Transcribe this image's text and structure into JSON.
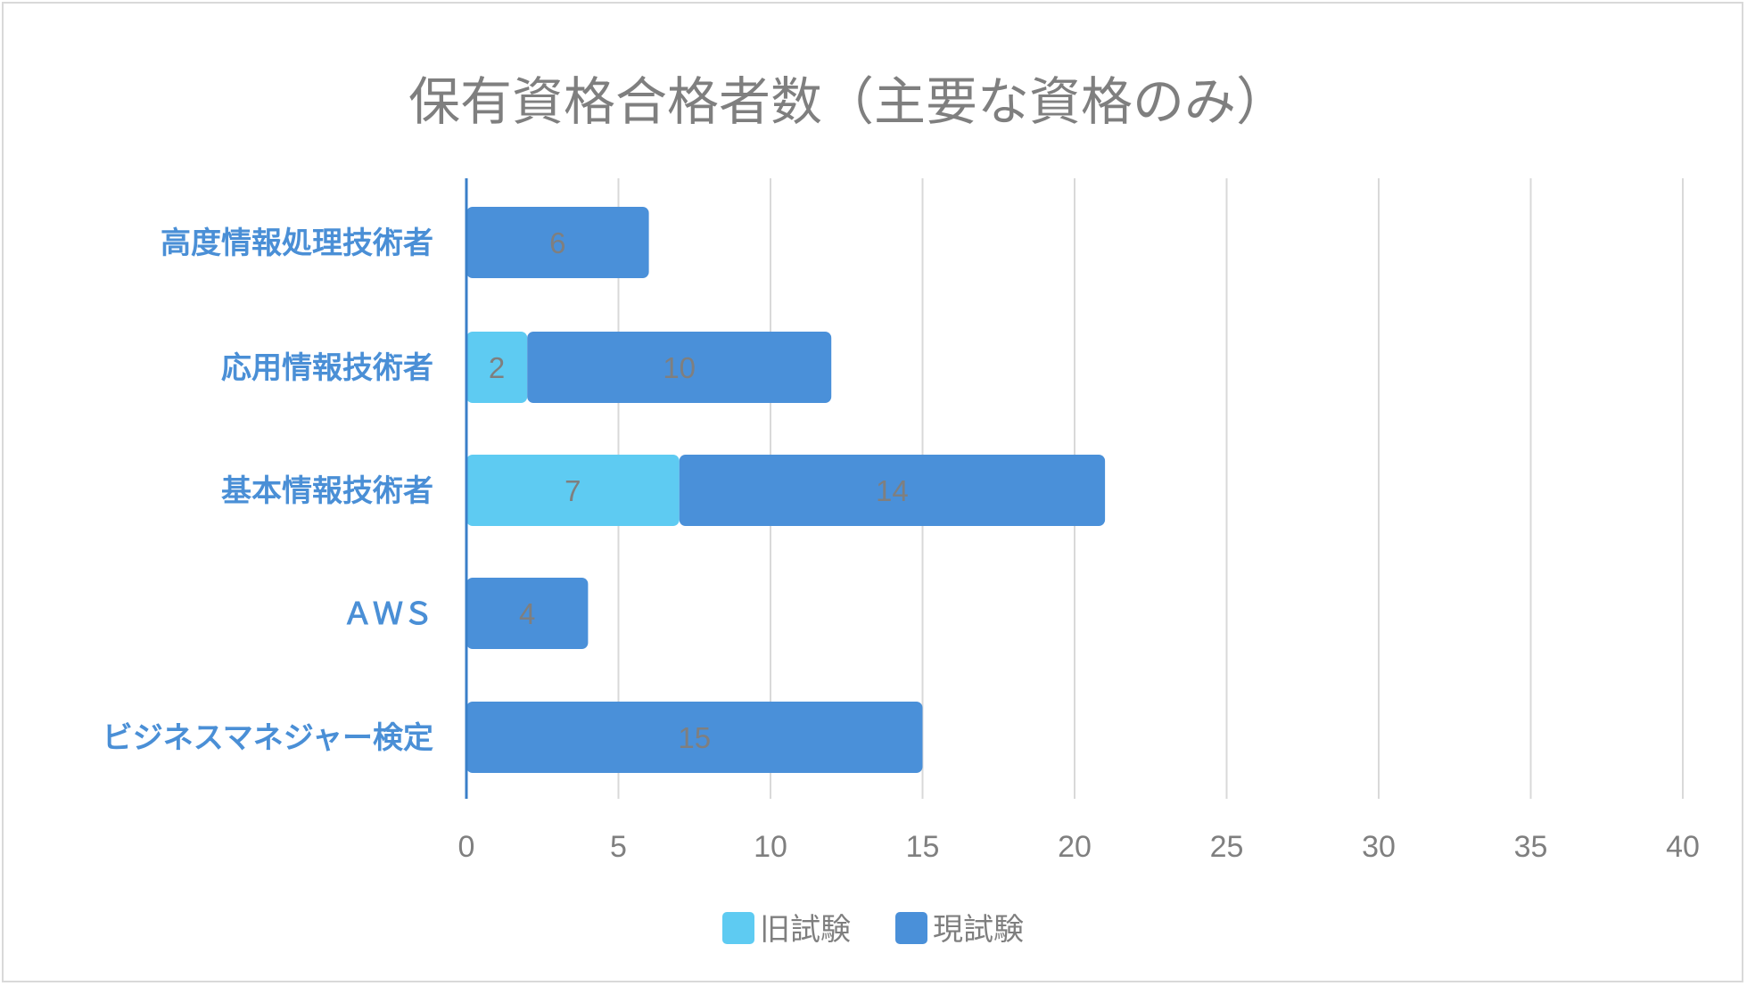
{
  "chart_data": {
    "type": "bar",
    "orientation": "horizontal",
    "stacked": true,
    "title": "保有資格合格者数（主要な資格のみ）",
    "categories": [
      "高度情報処理技術者",
      "応用情報技術者",
      "基本情報技術者",
      "ＡＷＳ",
      "ビジネスマネジャー検定"
    ],
    "series": [
      {
        "name": "旧試験",
        "values": [
          null,
          2,
          7,
          null,
          null
        ],
        "color": "#5ecbf2"
      },
      {
        "name": "現試験",
        "values": [
          6,
          10,
          14,
          4,
          15
        ],
        "color": "#4a90d9"
      }
    ],
    "xlim": [
      0,
      40
    ],
    "xticks": [
      0,
      5,
      10,
      15,
      20,
      25,
      30,
      35,
      40
    ],
    "grid": "vertical",
    "legend_position": "bottom",
    "category_label_color": "#4a8fd6",
    "axis_color": "#3a7fc8"
  }
}
